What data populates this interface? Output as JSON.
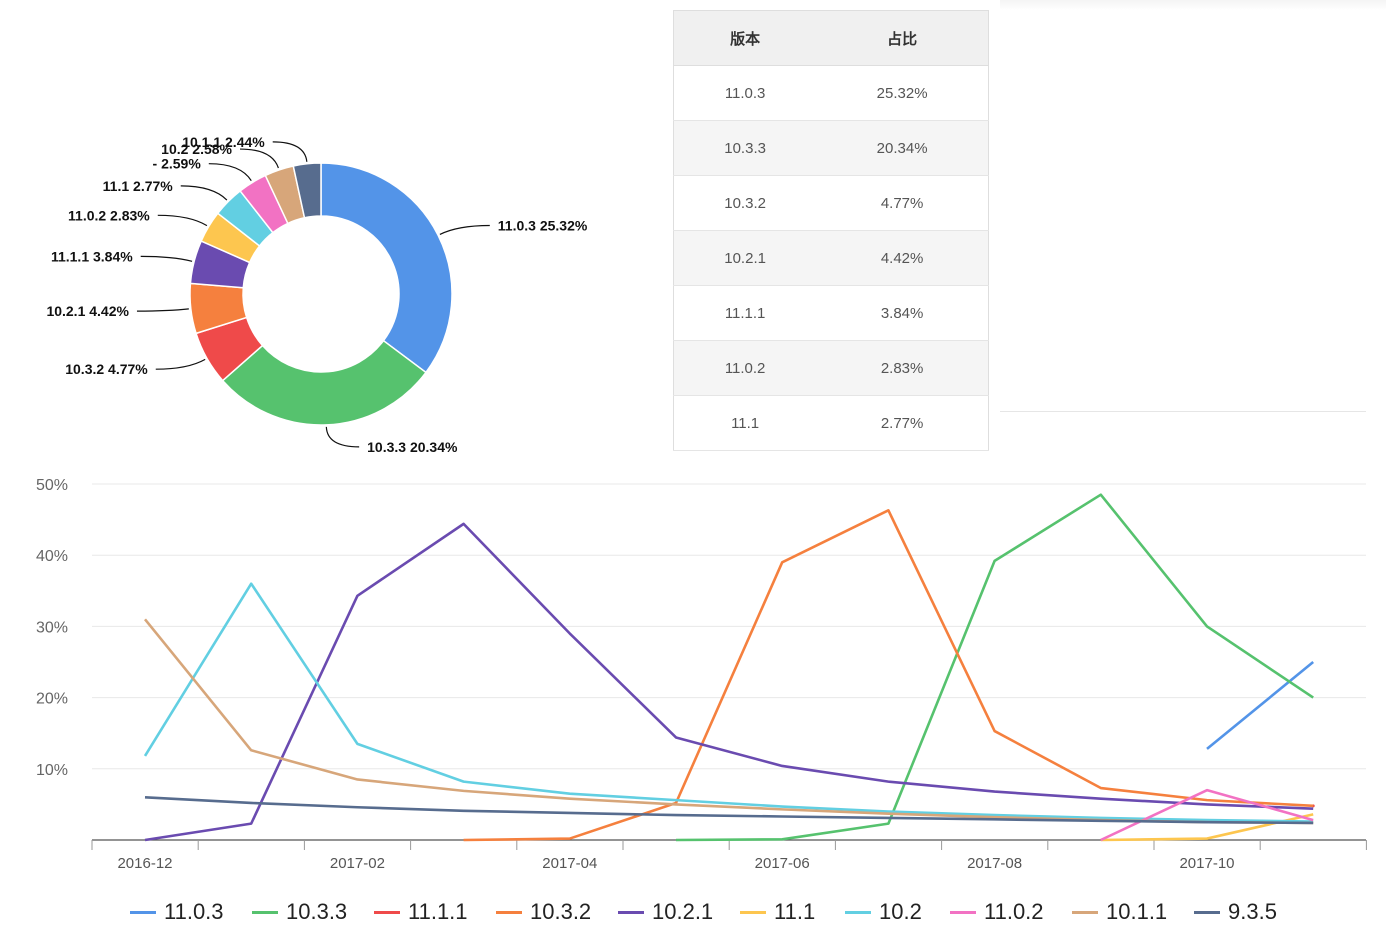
{
  "chart_data": [
    {
      "type": "pie",
      "donut": true,
      "slices": [
        {
          "name": "11.0.3",
          "value": 25.32,
          "label": "11.0.3 25.32%",
          "color": "#5394e8"
        },
        {
          "name": "10.3.3",
          "value": 20.34,
          "label": "10.3.3 20.34%",
          "color": "#56c26e"
        },
        {
          "name": "10.3.2",
          "value": 4.77,
          "label": "10.3.2 4.77%",
          "color": "#ef4a4a"
        },
        {
          "name": "10.2.1",
          "value": 4.42,
          "label": "10.2.1 4.42%",
          "color": "#f5803e"
        },
        {
          "name": "11.1.1",
          "value": 3.84,
          "label": "11.1.1 3.84%",
          "color": "#6a4bb0"
        },
        {
          "name": "11.0.2",
          "value": 2.83,
          "label": "11.0.2 2.83%",
          "color": "#fdc64f"
        },
        {
          "name": "11.1",
          "value": 2.77,
          "label": "11.1 2.77%",
          "color": "#62cfe2"
        },
        {
          "name": "-",
          "value": 2.59,
          "label": "- 2.59%",
          "color": "#f272c3"
        },
        {
          "name": "10.2",
          "value": 2.58,
          "label": "10.2 2.58%",
          "color": "#d7a67a"
        },
        {
          "name": "10.1.1",
          "value": 2.44,
          "label": "10.1.1 2.44%",
          "color": "#576c8e"
        }
      ]
    },
    {
      "type": "table",
      "columns": [
        "版本",
        "占比"
      ],
      "rows": [
        [
          "11.0.3",
          "25.32%"
        ],
        [
          "10.3.3",
          "20.34%"
        ],
        [
          "10.3.2",
          "4.77%"
        ],
        [
          "10.2.1",
          "4.42%"
        ],
        [
          "11.1.1",
          "3.84%"
        ],
        [
          "11.0.2",
          "2.83%"
        ],
        [
          "11.1",
          "2.77%"
        ]
      ]
    },
    {
      "type": "line",
      "x": [
        "2016-12",
        "2017-01",
        "2017-02",
        "2017-03",
        "2017-04",
        "2017-05",
        "2017-06",
        "2017-07",
        "2017-08",
        "2017-09",
        "2017-10",
        "2017-11"
      ],
      "x_tick_labels": [
        "2016-12",
        "2017-02",
        "2017-04",
        "2017-06",
        "2017-08",
        "2017-10"
      ],
      "ylim": [
        0,
        50
      ],
      "y_tick_labels": [
        "10%",
        "20%",
        "30%",
        "40%",
        "50%"
      ],
      "y_ticks": [
        10,
        20,
        30,
        40,
        50
      ],
      "grid": true,
      "legend_position": "bottom",
      "series": [
        {
          "name": "11.0.3",
          "color": "#5394e8",
          "values": [
            null,
            null,
            null,
            null,
            null,
            null,
            null,
            null,
            null,
            null,
            12.8,
            25
          ]
        },
        {
          "name": "10.3.3",
          "color": "#56c26e",
          "values": [
            null,
            null,
            null,
            null,
            null,
            0,
            0.1,
            2.3,
            39.2,
            48.5,
            30,
            20
          ]
        },
        {
          "name": "11.1.1",
          "color": "#ef4a4a",
          "values": [
            null,
            null,
            null,
            null,
            null,
            null,
            null,
            null,
            null,
            null,
            null,
            4.8
          ]
        },
        {
          "name": "10.3.2",
          "color": "#f5803e",
          "values": [
            null,
            null,
            null,
            0,
            0.2,
            5.2,
            39,
            46.3,
            15.3,
            7.3,
            5.6,
            4.8
          ]
        },
        {
          "name": "10.2.1",
          "color": "#6a4bb0",
          "values": [
            0,
            2.3,
            34.3,
            44.4,
            29,
            14.4,
            10.4,
            8.2,
            6.8,
            5.8,
            5,
            4.4
          ]
        },
        {
          "name": "11.1",
          "color": "#fdc64f",
          "values": [
            null,
            null,
            null,
            null,
            null,
            null,
            null,
            null,
            null,
            0,
            0.2,
            3.6
          ]
        },
        {
          "name": "10.2",
          "color": "#62cfe2",
          "values": [
            11.8,
            36,
            13.5,
            8.2,
            6.5,
            5.6,
            4.7,
            4,
            3.5,
            3.1,
            2.8,
            2.6
          ]
        },
        {
          "name": "11.0.2",
          "color": "#f272c3",
          "values": [
            null,
            null,
            null,
            null,
            null,
            null,
            null,
            null,
            null,
            0,
            7,
            2.8
          ]
        },
        {
          "name": "10.1.1",
          "color": "#d7a67a",
          "values": [
            31,
            12.6,
            8.5,
            6.9,
            5.8,
            5,
            4.3,
            3.7,
            3.2,
            2.8,
            2.5,
            2.4
          ]
        },
        {
          "name": "9.3.5",
          "color": "#576c8e",
          "values": [
            6,
            5.2,
            4.6,
            4.1,
            3.8,
            3.5,
            3.3,
            3.1,
            2.9,
            2.7,
            2.5,
            2.4
          ]
        }
      ]
    }
  ]
}
